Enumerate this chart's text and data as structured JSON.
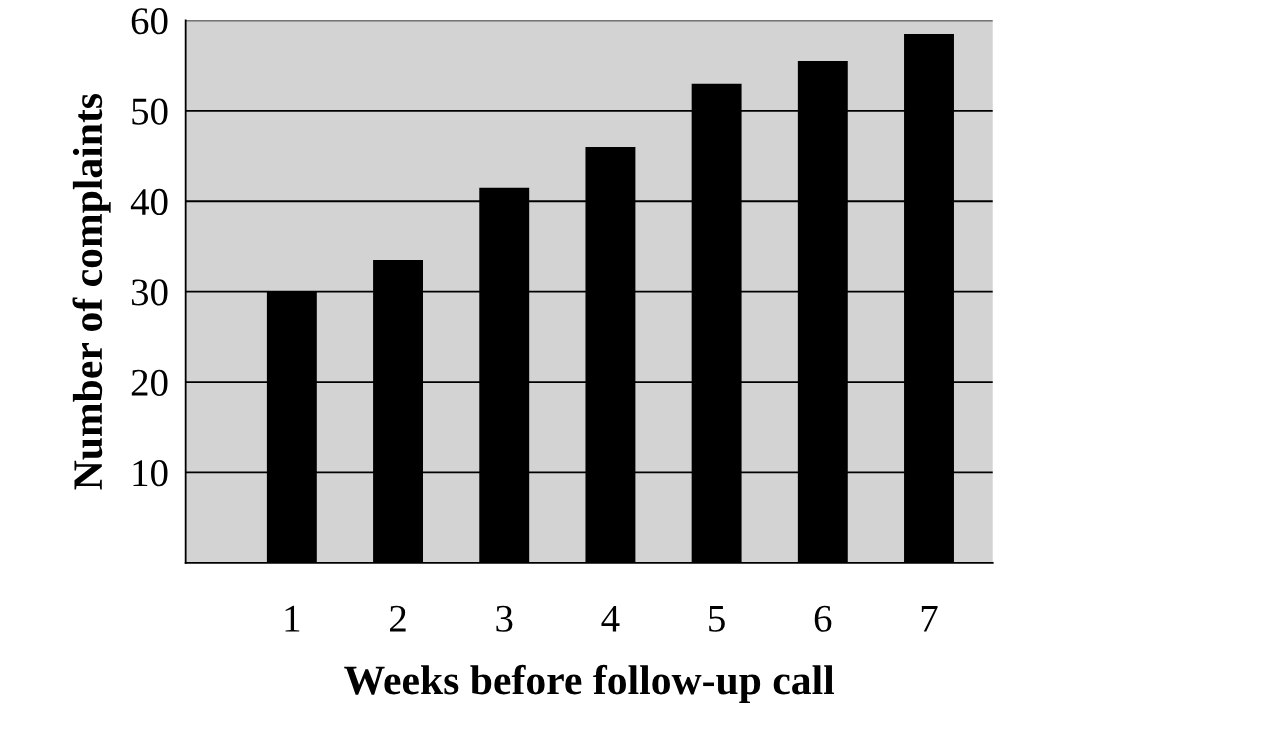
{
  "chart_data": {
    "type": "bar",
    "xlabel": "Weeks before follow-up call",
    "ylabel": "Number of complaints",
    "categories": [
      "1",
      "2",
      "3",
      "4",
      "5",
      "6",
      "7"
    ],
    "values": [
      30,
      33.5,
      41.5,
      46,
      53,
      55.5,
      58.5
    ],
    "color": "#000000",
    "ylim": [
      0,
      60
    ],
    "yticks": [
      10,
      20,
      30,
      40,
      50,
      60
    ],
    "grid": "y"
  }
}
